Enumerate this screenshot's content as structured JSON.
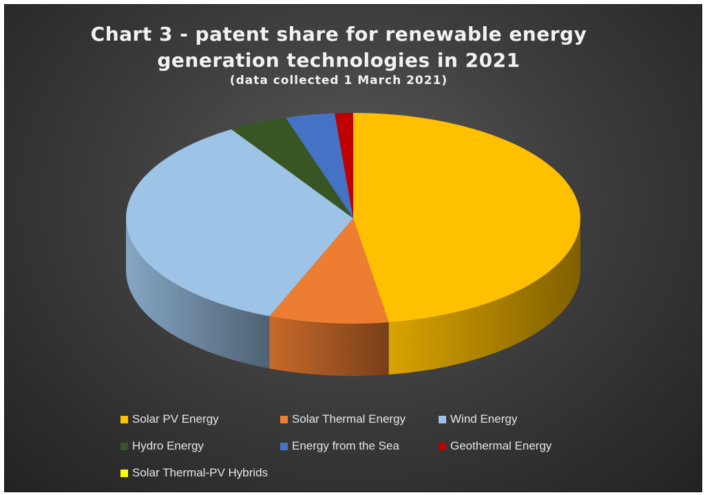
{
  "chart_data": {
    "type": "pie",
    "title_line1": "Chart 3 - patent share for renewable energy",
    "title_line2": "generation technologies in 2021",
    "subtitle": "(data collected 1 March 2021)",
    "legend_position": "bottom",
    "series": [
      {
        "name": "Solar PV Energy",
        "value": 47.5,
        "color": "#FFC000"
      },
      {
        "name": "Solar Thermal Energy",
        "value": 8.5,
        "color": "#ED7D31"
      },
      {
        "name": "Wind Energy",
        "value": 35.0,
        "color": "#9DC3E6"
      },
      {
        "name": "Hydro Energy",
        "value": 4.2,
        "color": "#375623"
      },
      {
        "name": "Energy from the Sea",
        "value": 3.5,
        "color": "#4472C4"
      },
      {
        "name": "Geothermal Energy",
        "value": 1.3,
        "color": "#C00000"
      },
      {
        "name": "Solar Thermal-PV Hybrids",
        "value": 0.0,
        "color": "#FFFF00"
      }
    ]
  }
}
